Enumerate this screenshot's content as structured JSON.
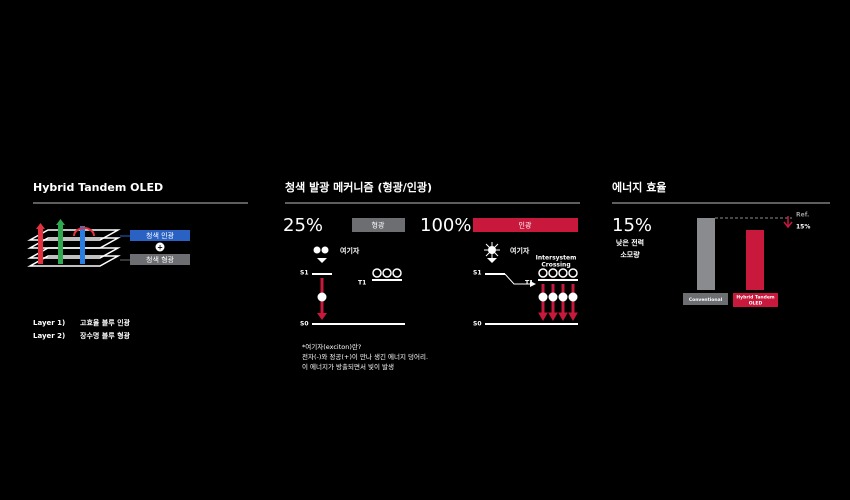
{
  "hybrid": {
    "title": "Hybrid Tandem OLED",
    "legend": [
      "청색 인광",
      "+",
      "청색 형광"
    ],
    "layers": [
      {
        "label": "Layer 1)",
        "text": "고효율 블루 인광"
      },
      {
        "label": "Layer 2)",
        "text": "장수명 블루 형광"
      }
    ]
  },
  "mechanism": {
    "title": "청색 발광 메커니즘 (형광/인광)",
    "fluorescence": {
      "percent": "25%",
      "label": "형광",
      "exciton": "여기자",
      "s1": "S1",
      "t1": "T1",
      "s0": "S0"
    },
    "phosphorescence": {
      "percent": "100%",
      "label": "인광",
      "exciton": "여기자",
      "isc": [
        "Intersystem",
        "Crossing"
      ],
      "s1": "S1",
      "t1": "T1",
      "s0": "S0"
    },
    "note": [
      "*여기자(exciton)란?",
      "전자(-)와 정공(+)이 만나 생긴 에너지 덩어리.",
      "이 에너지가 방출되면서 빛이 발생"
    ]
  },
  "efficiency": {
    "title": "에너지 효율",
    "percent": "15%",
    "caption": [
      "낮은 전력",
      "소모량"
    ],
    "ref": "Ref.",
    "reduction": "15%",
    "labels": [
      "Conventional",
      [
        "Hybrid Tandem",
        "OLED"
      ]
    ]
  }
}
